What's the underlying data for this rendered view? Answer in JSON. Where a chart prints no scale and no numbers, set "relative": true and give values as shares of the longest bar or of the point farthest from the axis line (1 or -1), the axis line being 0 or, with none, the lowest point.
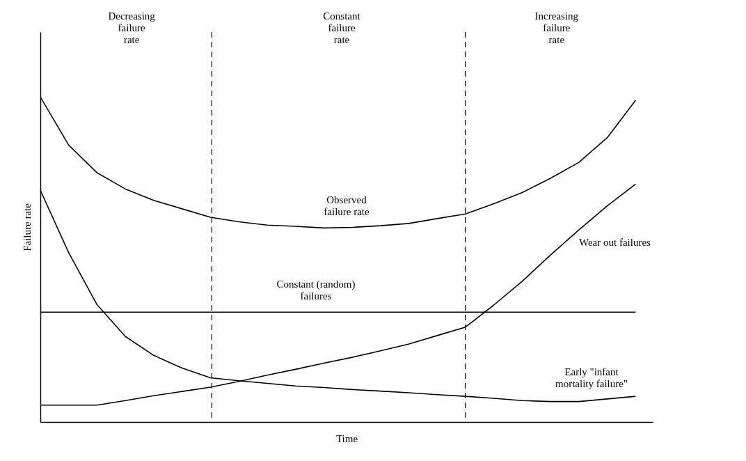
{
  "chart_data": {
    "type": "line",
    "relative": true,
    "xlabel": "Time",
    "ylabel": "Failure rate",
    "grid": false,
    "legend": false,
    "line_style": "solid",
    "marker": "none",
    "categories": [
      null,
      null,
      null,
      null,
      null,
      null,
      null,
      null,
      null,
      null,
      null,
      null,
      null,
      null,
      null,
      null,
      null,
      null,
      null,
      null,
      null,
      null
    ],
    "series": [
      {
        "name": "Observed\nfailure rate",
        "color": "#000000",
        "values": [
          1.0,
          0.852,
          0.767,
          0.717,
          0.682,
          0.656,
          0.63,
          0.616,
          0.606,
          0.602,
          0.597,
          0.599,
          0.604,
          0.611,
          0.626,
          0.64,
          0.672,
          0.706,
          0.75,
          0.799,
          0.875,
          0.99
        ]
      },
      {
        "name": "Wear out failures",
        "color": "#000000",
        "values": [
          0.052,
          0.052,
          0.052,
          0.066,
          0.081,
          0.094,
          0.107,
          0.125,
          0.144,
          0.162,
          0.181,
          0.199,
          0.219,
          0.24,
          0.266,
          0.292,
          0.36,
          0.433,
          0.514,
          0.591,
          0.665,
          0.732
        ]
      },
      {
        "name": "Constant (random)\nfailures",
        "color": "#000000",
        "values": [
          0.338,
          0.338,
          0.338,
          0.338,
          0.338,
          0.338,
          0.338,
          0.338,
          0.338,
          0.338,
          0.338,
          0.338,
          0.338,
          0.338,
          0.338,
          0.338,
          0.338,
          0.338,
          0.338,
          0.338,
          0.338,
          0.338
        ]
      },
      {
        "name": "Early \"infant\nmortality failure\"",
        "color": "#000000",
        "values": [
          0.713,
          0.521,
          0.361,
          0.263,
          0.205,
          0.166,
          0.136,
          0.127,
          0.119,
          0.111,
          0.106,
          0.1,
          0.095,
          0.09,
          0.084,
          0.079,
          0.073,
          0.066,
          0.063,
          0.063,
          0.071,
          0.079
        ]
      }
    ],
    "annotations": [
      "Decreasing\nfailure\nrate",
      "Constant\nfailure\nrate",
      "Increasing\nfailure\nrate"
    ]
  }
}
